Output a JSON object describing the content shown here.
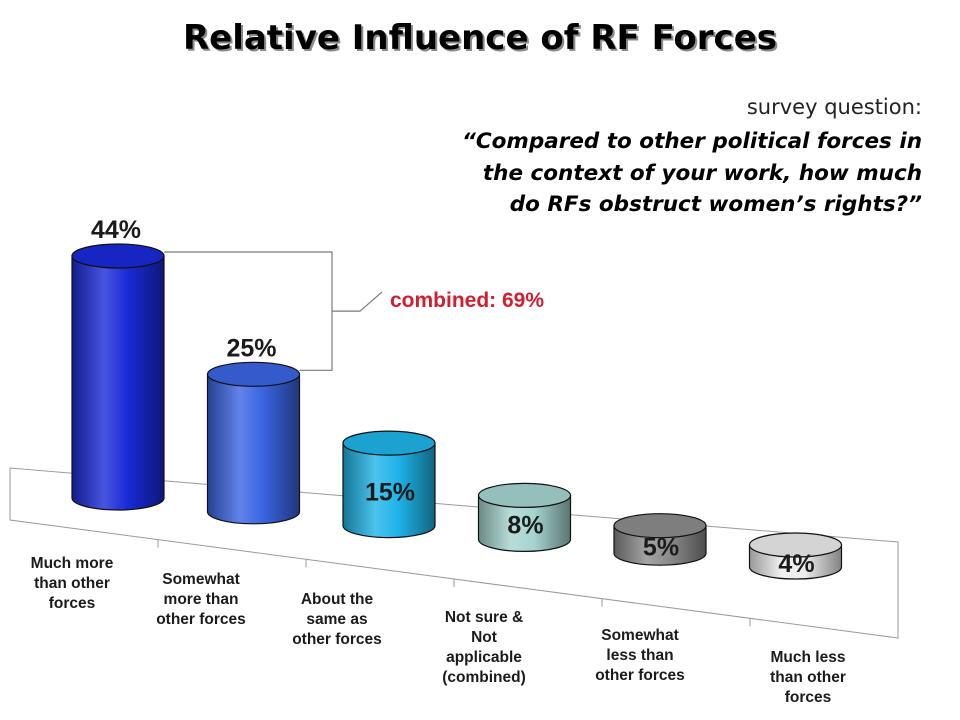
{
  "title": "Relative Influence of RF Forces",
  "survey": {
    "intro": "survey question:",
    "question": "“Compared to other political forces in the context of your work, how much do RFs obstruct women’s rights?”"
  },
  "annotation": {
    "combined_label": "combined: 69%",
    "color": "#d01f2f"
  },
  "chart_data": {
    "type": "bar",
    "style": "3d-cylinder",
    "title": "Relative Influence of RF Forces",
    "xlabel": "",
    "ylabel": "",
    "categories": [
      "Much more than other forces",
      "Somewhat more than other forces",
      "About the same as other forces",
      "Not sure & Not applicable (combined)",
      "Somewhat less than other forces",
      "Much less than other forces"
    ],
    "category_lines": [
      [
        "Much more",
        "than other",
        "forces"
      ],
      [
        "Somewhat",
        "more than",
        "other  forces"
      ],
      [
        "About the",
        "same as",
        "other  forces"
      ],
      [
        "Not sure &",
        "Not",
        "applicable",
        "(combined)"
      ],
      [
        "Somewhat",
        "less than",
        "other  forces"
      ],
      [
        "Much less",
        "than other",
        "forces"
      ]
    ],
    "values": [
      44,
      25,
      15,
      8,
      5,
      4
    ],
    "value_labels": [
      "44%",
      "25%",
      "15%",
      "8%",
      "5%",
      "4%"
    ],
    "colors": [
      "#1a2ad8",
      "#3a64e2",
      "#1eb4e8",
      "#a6d4d0",
      "#8c8c8c",
      "#ececec"
    ],
    "grid": false,
    "legend": "none"
  }
}
